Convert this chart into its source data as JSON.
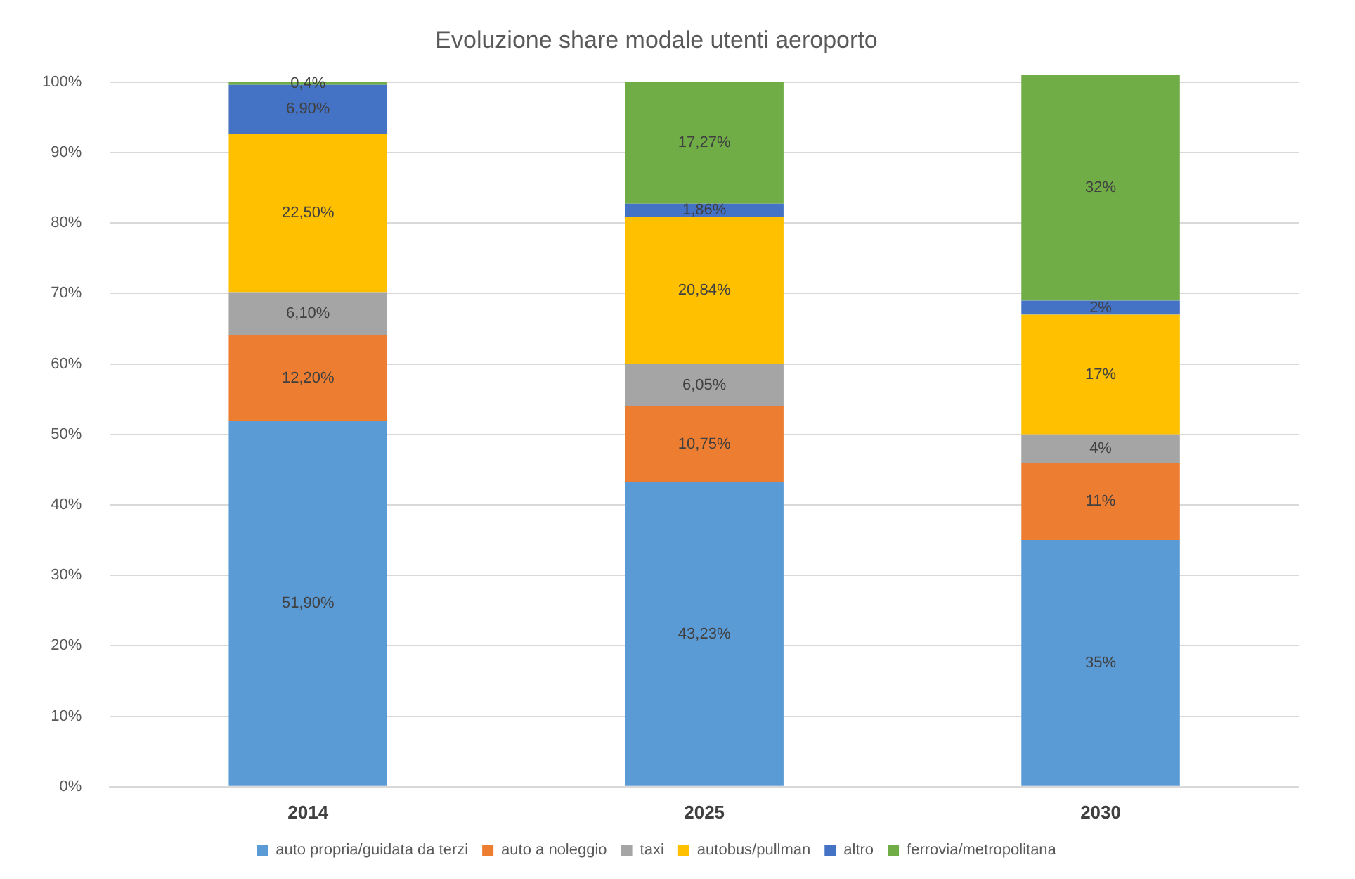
{
  "chart_data": {
    "type": "bar",
    "stacked": true,
    "title": "Evoluzione share modale utenti aeroporto",
    "categories": [
      "2014",
      "2025",
      "2030"
    ],
    "series": [
      {
        "name": "auto propria/guidata da terzi",
        "color": "#5b9bd5",
        "values": [
          51.9,
          43.23,
          35
        ],
        "value_labels": [
          "51,90%",
          "43,23%",
          "35%"
        ]
      },
      {
        "name": "auto a noleggio",
        "color": "#ed7d31",
        "values": [
          12.2,
          10.75,
          11
        ],
        "value_labels": [
          "12,20%",
          "10,75%",
          "11%"
        ]
      },
      {
        "name": "taxi",
        "color": "#a5a5a5",
        "values": [
          6.1,
          6.05,
          4
        ],
        "value_labels": [
          "6,10%",
          "6,05%",
          "4%"
        ]
      },
      {
        "name": "autobus/pullman",
        "color": "#ffc000",
        "values": [
          22.5,
          20.84,
          17
        ],
        "value_labels": [
          "22,50%",
          "20,84%",
          "17%"
        ]
      },
      {
        "name": "altro",
        "color": "#4472c4",
        "values": [
          6.9,
          1.86,
          2
        ],
        "value_labels": [
          "6,90%",
          "1,86%",
          "2%"
        ]
      },
      {
        "name": "ferrovia/metropolitana",
        "color": "#70ad47",
        "values": [
          0.4,
          17.27,
          32
        ],
        "value_labels": [
          "0,4%",
          "17,27%",
          "32%"
        ]
      }
    ],
    "ylim": [
      0,
      101
    ],
    "yticks": [
      {
        "value": 0,
        "label": "0%"
      },
      {
        "value": 10,
        "label": "10%"
      },
      {
        "value": 20,
        "label": "20%"
      },
      {
        "value": 30,
        "label": "30%"
      },
      {
        "value": 40,
        "label": "40%"
      },
      {
        "value": 50,
        "label": "50%"
      },
      {
        "value": 60,
        "label": "60%"
      },
      {
        "value": 70,
        "label": "70%"
      },
      {
        "value": 80,
        "label": "80%"
      },
      {
        "value": 90,
        "label": "90%"
      },
      {
        "value": 100,
        "label": "100%"
      }
    ],
    "grid": "y",
    "legend": "bottom"
  }
}
